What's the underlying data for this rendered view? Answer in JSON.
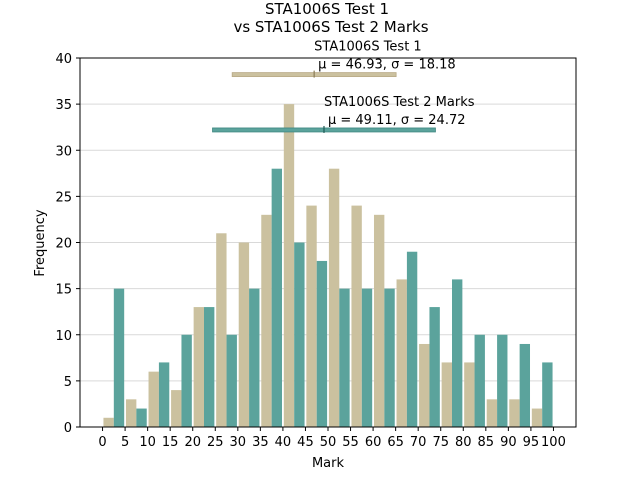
{
  "chart_data": {
    "type": "bar",
    "title_line1": "STA1006S Test 1",
    "title_line2": "vs STA1006S Test 2 Marks",
    "xlabel": "Mark",
    "ylabel": "Frequency",
    "xlim": [
      -5,
      105
    ],
    "ylim": [
      0,
      40
    ],
    "x_ticks": [
      0,
      5,
      10,
      15,
      20,
      25,
      30,
      35,
      40,
      45,
      50,
      55,
      60,
      65,
      70,
      75,
      80,
      85,
      90,
      95,
      100
    ],
    "y_ticks": [
      0,
      5,
      10,
      15,
      20,
      25,
      30,
      35,
      40
    ],
    "grid": "y",
    "series": [
      {
        "name": "STA1006S Test 1",
        "color": "#cbc19f",
        "bin_starts": [
          0,
          5,
          10,
          15,
          20,
          25,
          30,
          35,
          40,
          45,
          50,
          55,
          60,
          65,
          70,
          75,
          80,
          85,
          90,
          95
        ],
        "values": [
          1,
          3,
          6,
          4,
          13,
          21,
          20,
          23,
          35,
          24,
          28,
          24,
          23,
          16,
          9,
          7,
          7,
          3,
          3,
          2
        ],
        "mean": 46.93,
        "sd": 18.18,
        "label_name": "STA1006S Test 1",
        "label_stats": "μ = 46.93, σ = 18.18",
        "bar_y": 38.2
      },
      {
        "name": "STA1006S Test 2 Marks",
        "color": "#5ba39c",
        "bin_starts": [
          0,
          5,
          10,
          15,
          20,
          25,
          30,
          35,
          40,
          45,
          50,
          55,
          60,
          65,
          70,
          75,
          80,
          85,
          90,
          95
        ],
        "values": [
          15,
          2,
          7,
          10,
          13,
          10,
          15,
          28,
          20,
          18,
          15,
          15,
          15,
          19,
          13,
          16,
          10,
          10,
          9,
          7
        ],
        "mean": 49.11,
        "sd": 24.72,
        "label_name": "STA1006S Test 2 Marks",
        "label_stats": "μ = 49.11, σ = 24.72",
        "bar_y": 32.2
      }
    ]
  }
}
